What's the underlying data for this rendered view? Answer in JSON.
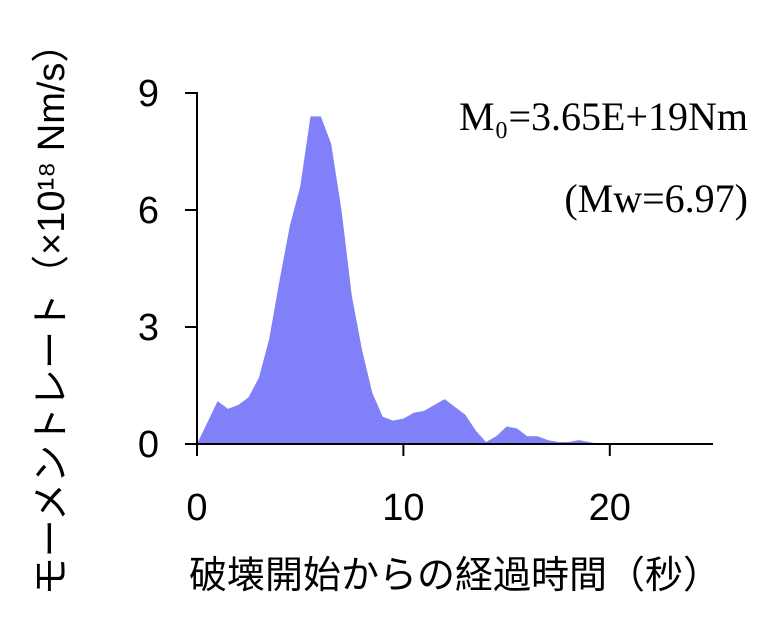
{
  "chart_data": {
    "type": "area",
    "x_label": "破壊開始からの経過時間（秒）",
    "y_label": "モーメントレート（×10¹⁸ Nm/s）",
    "annotations": [
      "M₀=3.65E+19Nm",
      "(Mw=6.97)"
    ],
    "x": [
      0,
      1,
      1.5,
      2,
      2.5,
      3,
      3.5,
      4,
      4.5,
      5,
      5.5,
      6,
      6.5,
      7,
      7.5,
      8,
      8.5,
      9,
      9.5,
      10,
      10.5,
      11,
      11.5,
      12,
      12.5,
      13,
      13.5,
      14,
      14.5,
      15,
      15.5,
      16,
      16.5,
      17,
      17.5,
      18,
      18.5,
      19,
      19.5,
      20
    ],
    "values": [
      0,
      1.1,
      0.9,
      1.0,
      1.2,
      1.7,
      2.7,
      4.2,
      5.6,
      6.6,
      8.4,
      8.4,
      7.7,
      6.0,
      3.8,
      2.4,
      1.3,
      0.7,
      0.6,
      0.65,
      0.8,
      0.85,
      1.0,
      1.15,
      0.95,
      0.75,
      0.35,
      0.05,
      0.2,
      0.45,
      0.4,
      0.2,
      0.2,
      0.1,
      0.05,
      0.05,
      0.1,
      0.05,
      0,
      0
    ],
    "color": "#8080f8",
    "xlim": [
      0,
      25
    ],
    "xticks": [
      0,
      10,
      20
    ],
    "ylim": [
      0,
      9
    ],
    "yticks": [
      0,
      3,
      6,
      9
    ]
  }
}
